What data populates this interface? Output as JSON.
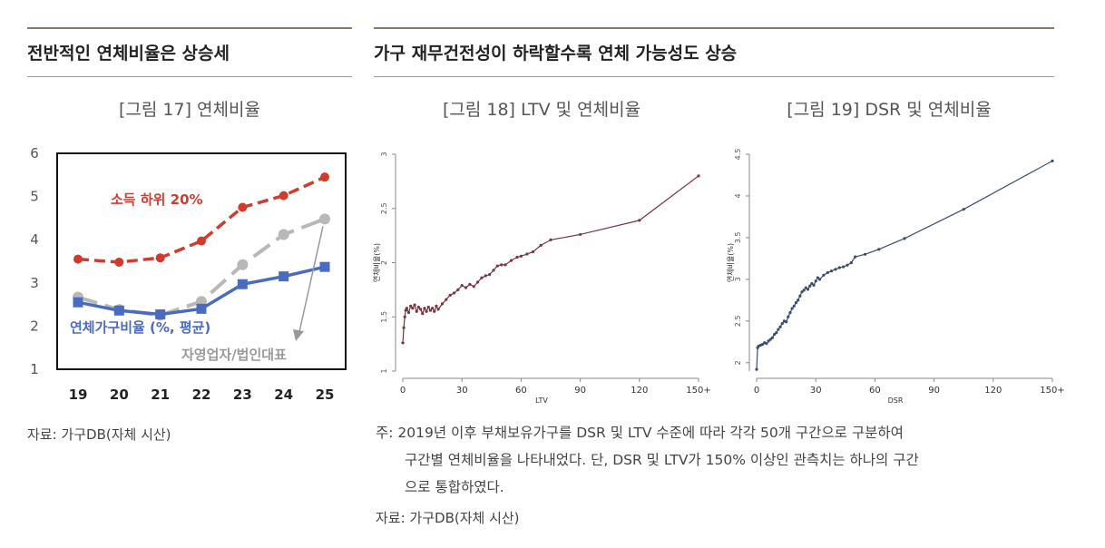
{
  "left_section": {
    "heading": "전반적인 연체비율은 상승세",
    "figure_title": "[그림 17] 연체비율",
    "source": "자료: 가구DB(자체 시산)"
  },
  "right_section": {
    "heading": "가구 재무건전성이 하락할수록 연체 가능성도 상승",
    "figure18_title": "[그림 18] LTV 및 연체비율",
    "figure19_title": "[그림 19] DSR 및 연체비율",
    "note_line1": "주: 2019년 이후 부채보유가구를 DSR 및 LTV 수준에 따라 각각 50개 구간으로 구분하여",
    "note_line2": "구간별 연체비율을 나타내었다. 단, DSR 및 LTV가 150% 이상인 관측치는 하나의 구간",
    "note_line3": "으로 통합하였다.",
    "source": "자료: 가구DB(자체 시산)"
  },
  "colors": {
    "heading_rule": "#8c7a5e",
    "low_income": "#d13b2e",
    "household": "#4a6cc0",
    "self_employed": "#b8b8b8",
    "ltv_line": "#7a3540",
    "dsr_line": "#3b4d6e"
  },
  "chart_data": [
    {
      "type": "line",
      "categories": [
        "19",
        "20",
        "21",
        "22",
        "23",
        "24",
        "25"
      ],
      "ylim": [
        1,
        6
      ],
      "yticks": [
        "1",
        "2",
        "3",
        "4",
        "5",
        "6"
      ],
      "series": [
        {
          "name": "소득 하위 20%",
          "values": [
            3.55,
            3.48,
            3.58,
            3.97,
            4.75,
            5.02,
            5.45
          ],
          "style": "dashed"
        },
        {
          "name": "자영업자/법인대표",
          "values": [
            2.67,
            2.38,
            2.25,
            2.57,
            3.42,
            4.12,
            4.48
          ],
          "style": "dashed"
        },
        {
          "name": "연체가구비율 (%, 평균)",
          "values": [
            2.55,
            2.36,
            2.27,
            2.4,
            2.97,
            3.15,
            3.37
          ],
          "style": "solid"
        }
      ]
    },
    {
      "type": "line",
      "xlabel": "LTV",
      "ylabel": "연체비율(%)",
      "xticks": [
        "0",
        "30",
        "60",
        "90",
        "120",
        "150+"
      ],
      "yticks": [
        "1",
        "1.5",
        "2",
        "2.5",
        "3"
      ],
      "xlim": [
        0,
        150
      ],
      "ylim": [
        1,
        3
      ],
      "x": [
        0,
        0.5,
        1,
        1.5,
        2,
        3,
        4,
        5,
        6,
        7,
        8,
        9,
        10,
        11,
        12,
        13,
        14,
        15,
        16,
        17,
        18,
        20,
        22,
        24,
        26,
        28,
        30,
        32,
        34,
        36,
        38,
        40,
        42,
        44,
        46,
        48,
        50,
        52,
        55,
        58,
        60,
        63,
        66,
        70,
        75,
        90,
        120,
        150
      ],
      "values": [
        1.26,
        1.4,
        1.5,
        1.56,
        1.58,
        1.54,
        1.6,
        1.58,
        1.61,
        1.55,
        1.59,
        1.57,
        1.53,
        1.58,
        1.55,
        1.59,
        1.56,
        1.58,
        1.55,
        1.6,
        1.57,
        1.62,
        1.66,
        1.7,
        1.72,
        1.75,
        1.79,
        1.77,
        1.8,
        1.78,
        1.82,
        1.86,
        1.88,
        1.89,
        1.93,
        1.97,
        1.98,
        1.98,
        2.02,
        2.05,
        2.06,
        2.08,
        2.1,
        2.16,
        2.21,
        2.26,
        2.39,
        2.8
      ]
    },
    {
      "type": "line",
      "xlabel": "DSR",
      "ylabel": "연체비율(%)",
      "xticks": [
        "0",
        "30",
        "60",
        "90",
        "120",
        "150+"
      ],
      "yticks": [
        "2",
        "2.5",
        "3",
        "3.5",
        "4",
        "4.5"
      ],
      "xlim": [
        0,
        150
      ],
      "ylim": [
        1.9,
        4.5
      ],
      "x": [
        0,
        0.5,
        1,
        2,
        3,
        4,
        5,
        6,
        7,
        8,
        9,
        10,
        11,
        12,
        13,
        14,
        15,
        16,
        17,
        18,
        19,
        20,
        21,
        22,
        23,
        24,
        25,
        26,
        27,
        28,
        29,
        30,
        31,
        32,
        34,
        36,
        38,
        40,
        42,
        44,
        46,
        48,
        50,
        55,
        62,
        75,
        105,
        150
      ],
      "values": [
        1.92,
        2.18,
        2.2,
        2.21,
        2.22,
        2.24,
        2.23,
        2.26,
        2.28,
        2.3,
        2.34,
        2.36,
        2.4,
        2.43,
        2.47,
        2.5,
        2.49,
        2.55,
        2.6,
        2.65,
        2.68,
        2.72,
        2.75,
        2.8,
        2.85,
        2.87,
        2.9,
        2.88,
        2.92,
        2.95,
        2.93,
        2.98,
        3.02,
        3.0,
        3.05,
        3.08,
        3.1,
        3.12,
        3.14,
        3.15,
        3.17,
        3.2,
        3.27,
        3.3,
        3.36,
        3.49,
        3.84,
        4.42
      ]
    }
  ]
}
